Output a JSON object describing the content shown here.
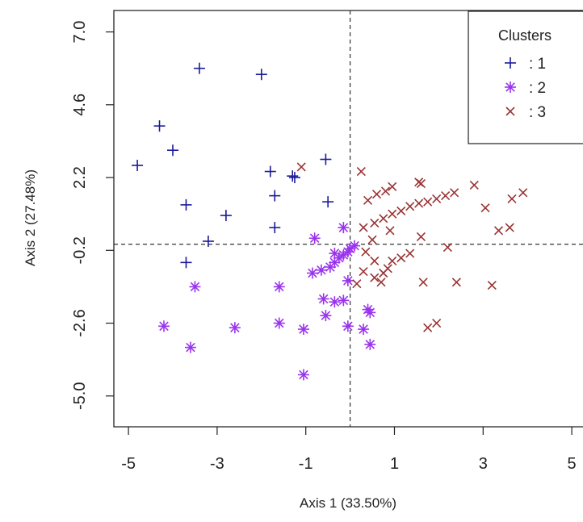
{
  "chart_data": {
    "type": "scatter",
    "title": "",
    "xlabel": "Axis 1 (33.50%)",
    "ylabel": "Axis 2 (27.48%)",
    "xlim": [
      -5.5,
      5.3
    ],
    "ylim": [
      -5.5,
      7.4
    ],
    "xticks": [
      "-5",
      "-3",
      "-1",
      "1",
      "3",
      "5"
    ],
    "yticks": [
      "7.0",
      "4.6",
      "2.2",
      "-0.2",
      "-2.6",
      "-5.0"
    ],
    "reference_lines": {
      "x": 0,
      "y": 0
    },
    "legend": {
      "title": "Clusters",
      "placement": "top-right",
      "separator": ":"
    },
    "series": [
      {
        "name": "1",
        "marker": "plus",
        "color": "#1a1a99",
        "points": [
          [
            -3.4,
            5.8
          ],
          [
            -2.0,
            5.6
          ],
          [
            -4.3,
            3.9
          ],
          [
            -4.0,
            3.1
          ],
          [
            -4.8,
            2.6
          ],
          [
            -1.8,
            2.4
          ],
          [
            -1.3,
            2.25
          ],
          [
            -1.25,
            2.2
          ],
          [
            -0.55,
            2.8
          ],
          [
            -3.7,
            1.3
          ],
          [
            -1.7,
            1.6
          ],
          [
            -0.5,
            1.4
          ],
          [
            -2.8,
            0.95
          ],
          [
            -3.2,
            0.1
          ],
          [
            -1.7,
            0.55
          ],
          [
            -3.7,
            -0.6
          ]
        ]
      },
      {
        "name": "2",
        "marker": "asterisk",
        "color": "#9933ee",
        "points": [
          [
            -3.5,
            -1.4
          ],
          [
            -4.2,
            -2.7
          ],
          [
            -2.6,
            -2.75
          ],
          [
            -3.6,
            -3.4
          ],
          [
            -1.6,
            -1.4
          ],
          [
            -1.6,
            -2.6
          ],
          [
            -1.05,
            -2.8
          ],
          [
            -1.05,
            -4.3
          ],
          [
            -0.85,
            -0.95
          ],
          [
            -0.65,
            -0.85
          ],
          [
            -0.45,
            -0.75
          ],
          [
            -0.35,
            -0.6
          ],
          [
            -0.25,
            -0.45
          ],
          [
            -0.15,
            -0.35
          ],
          [
            -0.05,
            -0.25
          ],
          [
            0.0,
            -0.15
          ],
          [
            0.1,
            -0.05
          ],
          [
            -0.8,
            0.2
          ],
          [
            -0.15,
            0.55
          ],
          [
            -0.05,
            -1.2
          ],
          [
            -0.6,
            -1.8
          ],
          [
            -0.35,
            -1.9
          ],
          [
            -0.15,
            -1.85
          ],
          [
            -0.55,
            -2.35
          ],
          [
            -0.05,
            -2.7
          ],
          [
            0.3,
            -2.8
          ],
          [
            0.4,
            -2.15
          ],
          [
            0.45,
            -2.25
          ],
          [
            0.45,
            -3.3
          ],
          [
            -0.35,
            -0.3
          ]
        ]
      },
      {
        "name": "3",
        "marker": "cross",
        "color": "#993333",
        "points": [
          [
            -1.1,
            2.55
          ],
          [
            0.25,
            2.4
          ],
          [
            0.4,
            1.45
          ],
          [
            0.6,
            1.65
          ],
          [
            0.8,
            1.75
          ],
          [
            0.95,
            1.9
          ],
          [
            0.3,
            0.55
          ],
          [
            0.55,
            0.7
          ],
          [
            0.75,
            0.85
          ],
          [
            0.95,
            1.0
          ],
          [
            1.15,
            1.1
          ],
          [
            1.35,
            1.25
          ],
          [
            1.55,
            1.35
          ],
          [
            1.75,
            1.4
          ],
          [
            1.95,
            1.5
          ],
          [
            2.15,
            1.6
          ],
          [
            2.35,
            1.7
          ],
          [
            1.55,
            2.05
          ],
          [
            1.6,
            2.0
          ],
          [
            2.8,
            1.95
          ],
          [
            3.05,
            1.2
          ],
          [
            3.35,
            0.45
          ],
          [
            3.6,
            0.55
          ],
          [
            3.65,
            1.5
          ],
          [
            3.9,
            1.7
          ],
          [
            0.35,
            -0.25
          ],
          [
            0.55,
            -0.55
          ],
          [
            0.75,
            -0.95
          ],
          [
            0.95,
            -0.55
          ],
          [
            1.15,
            -0.45
          ],
          [
            1.35,
            -0.3
          ],
          [
            1.6,
            0.25
          ],
          [
            0.3,
            -0.9
          ],
          [
            0.55,
            -1.1
          ],
          [
            0.7,
            -1.25
          ],
          [
            0.85,
            -0.8
          ],
          [
            1.65,
            -1.25
          ],
          [
            2.2,
            -0.1
          ],
          [
            2.4,
            -1.25
          ],
          [
            3.2,
            -1.35
          ],
          [
            1.75,
            -2.75
          ],
          [
            1.95,
            -2.6
          ],
          [
            0.15,
            -1.3
          ],
          [
            0.9,
            0.45
          ],
          [
            0.5,
            0.15
          ]
        ]
      }
    ]
  }
}
